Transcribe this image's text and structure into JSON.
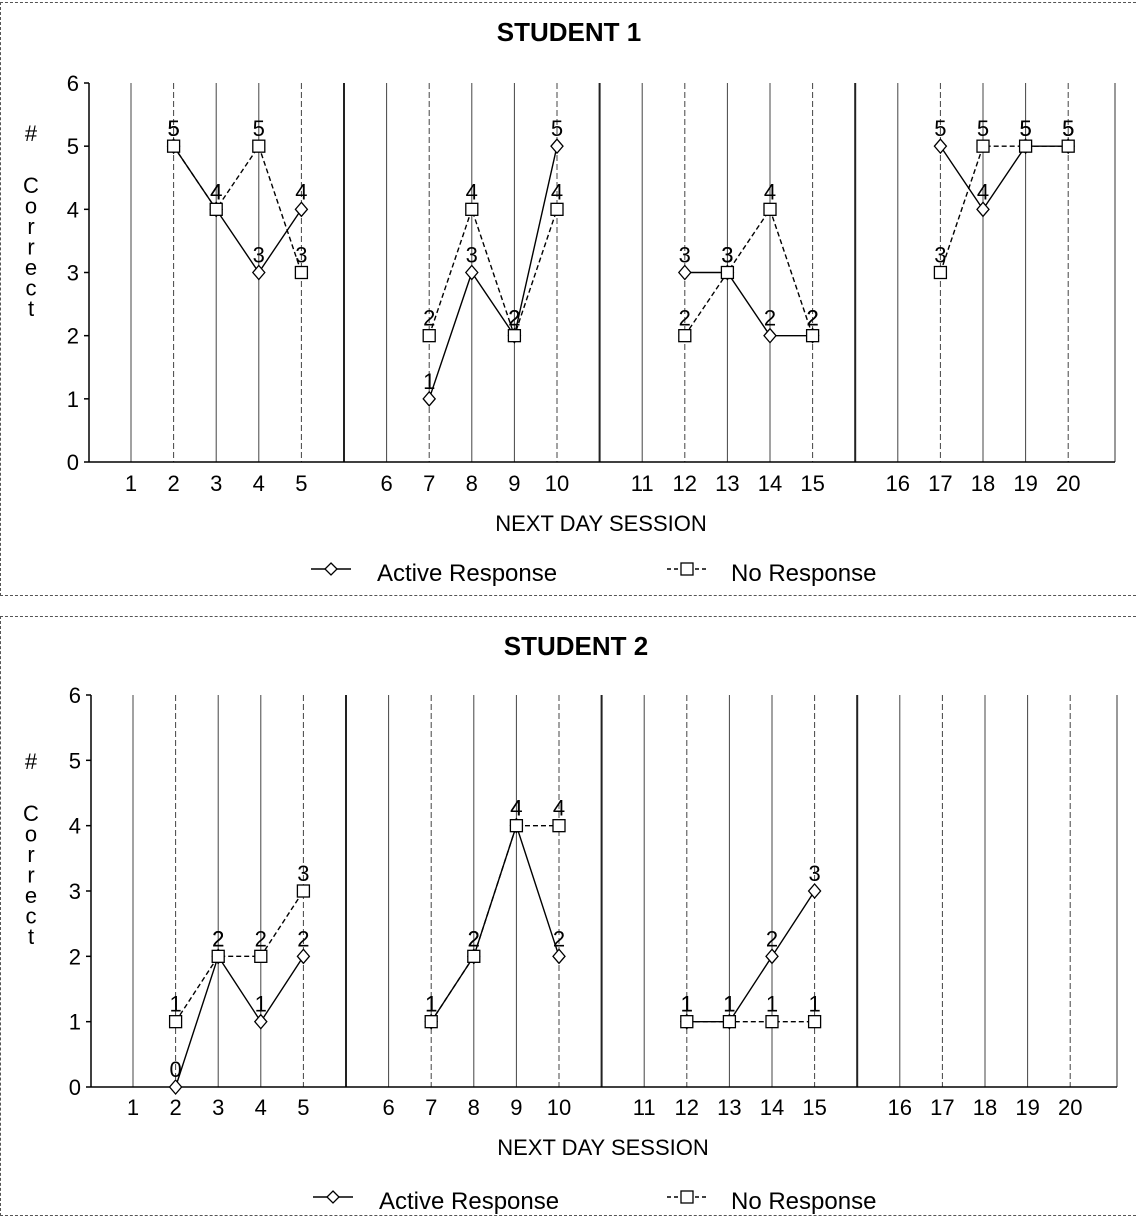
{
  "chart_data": [
    {
      "type": "line",
      "title": "STUDENT 1",
      "xlabel": "NEXT DAY SESSION",
      "ylabel": "# Correct",
      "ylim": [
        0,
        6
      ],
      "yticks": [
        0,
        1,
        2,
        3,
        4,
        5,
        6
      ],
      "x_ticks": [
        1,
        2,
        3,
        4,
        5,
        6,
        7,
        8,
        9,
        10,
        11,
        12,
        13,
        14,
        15,
        16,
        17,
        18,
        19,
        20
      ],
      "grid": "vertical lines at each session",
      "legend": "bottom",
      "series": [
        {
          "name": "Active Response",
          "marker": "diamond",
          "line": "solid",
          "segments": [
            [
              {
                "x": 2,
                "y": 5
              },
              {
                "x": 3,
                "y": 4
              },
              {
                "x": 4,
                "y": 3
              },
              {
                "x": 5,
                "y": 4
              }
            ],
            [
              {
                "x": 7,
                "y": 1
              },
              {
                "x": 8,
                "y": 3
              },
              {
                "x": 9,
                "y": 2
              },
              {
                "x": 10,
                "y": 5
              }
            ],
            [
              {
                "x": 12,
                "y": 3
              },
              {
                "x": 13,
                "y": 3
              },
              {
                "x": 14,
                "y": 2
              },
              {
                "x": 15,
                "y": 2
              }
            ],
            [
              {
                "x": 17,
                "y": 5
              },
              {
                "x": 18,
                "y": 4
              },
              {
                "x": 19,
                "y": 5
              },
              {
                "x": 20,
                "y": 5
              }
            ]
          ]
        },
        {
          "name": "No Response",
          "marker": "square",
          "line": "dashed",
          "segments": [
            [
              {
                "x": 2,
                "y": 5
              },
              {
                "x": 3,
                "y": 4
              },
              {
                "x": 4,
                "y": 5
              },
              {
                "x": 5,
                "y": 3
              }
            ],
            [
              {
                "x": 7,
                "y": 2
              },
              {
                "x": 8,
                "y": 4
              },
              {
                "x": 9,
                "y": 2
              },
              {
                "x": 10,
                "y": 4
              }
            ],
            [
              {
                "x": 12,
                "y": 2
              },
              {
                "x": 13,
                "y": 3
              },
              {
                "x": 14,
                "y": 4
              },
              {
                "x": 15,
                "y": 2
              }
            ],
            [
              {
                "x": 17,
                "y": 3
              },
              {
                "x": 18,
                "y": 5
              },
              {
                "x": 19,
                "y": 5
              },
              {
                "x": 20,
                "y": 5
              }
            ]
          ]
        }
      ]
    },
    {
      "type": "line",
      "title": "STUDENT 2",
      "xlabel": "NEXT DAY SESSION",
      "ylabel": "# Correct",
      "ylim": [
        0,
        6
      ],
      "yticks": [
        0,
        1,
        2,
        3,
        4,
        5,
        6
      ],
      "x_ticks": [
        1,
        2,
        3,
        4,
        5,
        6,
        7,
        8,
        9,
        10,
        11,
        12,
        13,
        14,
        15,
        16,
        17,
        18,
        19,
        20
      ],
      "grid": "vertical lines at each session",
      "legend": "bottom",
      "series": [
        {
          "name": "Active Response",
          "marker": "diamond",
          "line": "solid",
          "segments": [
            [
              {
                "x": 2,
                "y": 0
              },
              {
                "x": 3,
                "y": 2
              },
              {
                "x": 4,
                "y": 1
              },
              {
                "x": 5,
                "y": 2
              }
            ],
            [
              {
                "x": 7,
                "y": 1
              },
              {
                "x": 8,
                "y": 2
              },
              {
                "x": 9,
                "y": 4
              },
              {
                "x": 10,
                "y": 2
              }
            ],
            [
              {
                "x": 12,
                "y": 1
              },
              {
                "x": 13,
                "y": 1
              },
              {
                "x": 14,
                "y": 2
              },
              {
                "x": 15,
                "y": 3
              }
            ]
          ]
        },
        {
          "name": "No Response",
          "marker": "square",
          "line": "dashed",
          "segments": [
            [
              {
                "x": 2,
                "y": 1
              },
              {
                "x": 3,
                "y": 2
              },
              {
                "x": 4,
                "y": 2
              },
              {
                "x": 5,
                "y": 3
              }
            ],
            [
              {
                "x": 7,
                "y": 1
              },
              {
                "x": 8,
                "y": 2
              },
              {
                "x": 9,
                "y": 4
              },
              {
                "x": 10,
                "y": 4
              }
            ],
            [
              {
                "x": 12,
                "y": 1
              },
              {
                "x": 13,
                "y": 1
              },
              {
                "x": 14,
                "y": 1
              },
              {
                "x": 15,
                "y": 1
              }
            ]
          ]
        }
      ]
    }
  ]
}
